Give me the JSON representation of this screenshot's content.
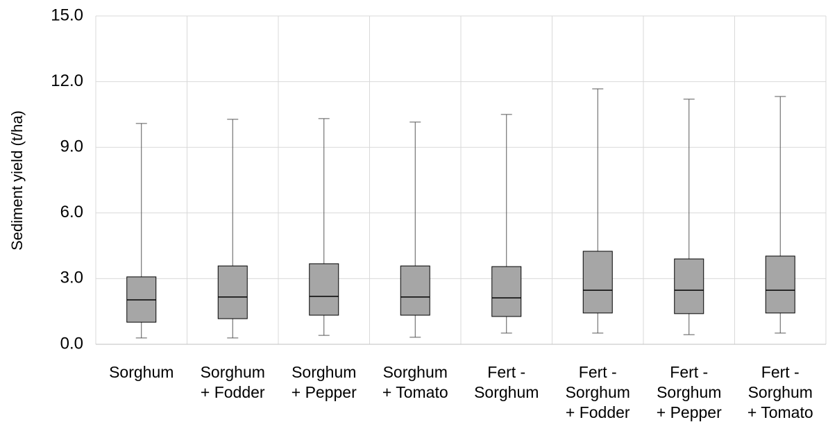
{
  "chart_data": {
    "type": "box",
    "y_label": "Sediment yield (t/ha)",
    "categories": [
      "Sorghum",
      "Sorghum\n+ Fodder",
      "Sorghum\n+ Pepper",
      "Sorghum\n+ Tomato",
      "Fert -\nSorghum",
      "Fert -\nSorghum\n+ Fodder",
      "Fert -\nSorghum\n+ Pepper",
      "Fert -\nSorghum\n+ Tomato"
    ],
    "low": [
      0.29,
      0.29,
      0.41,
      0.32,
      0.51,
      0.51,
      0.44,
      0.51
    ],
    "q1": [
      1.01,
      1.17,
      1.33,
      1.33,
      1.27,
      1.43,
      1.4,
      1.43
    ],
    "median": [
      2.03,
      2.16,
      2.19,
      2.16,
      2.12,
      2.47,
      2.47,
      2.47
    ],
    "q3": [
      3.08,
      3.58,
      3.68,
      3.58,
      3.55,
      4.25,
      3.9,
      4.03
    ],
    "high": [
      10.09,
      10.28,
      10.31,
      10.15,
      10.5,
      11.67,
      11.2,
      11.32
    ],
    "color": "#a6a6a6",
    "ylim": [
      0,
      15
    ],
    "yticks": [
      {
        "value": 0,
        "label": "0.0"
      },
      {
        "value": 3,
        "label": "3.0"
      },
      {
        "value": 6,
        "label": "6.0"
      },
      {
        "value": 9,
        "label": "9.0"
      },
      {
        "value": 12,
        "label": "12.0"
      },
      {
        "value": 15,
        "label": "15.0"
      }
    ],
    "grid": true
  }
}
